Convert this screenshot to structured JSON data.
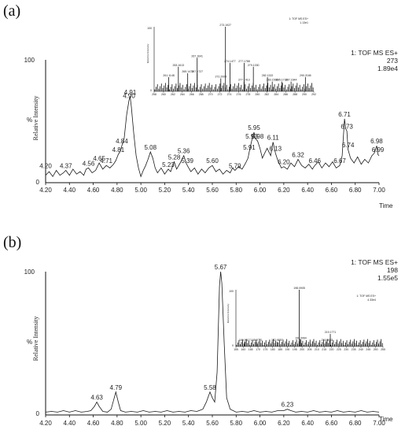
{
  "chart_data": [
    {
      "type": "line",
      "panel_label": "(a)",
      "xlabel": "Time",
      "ylabel": "Relative Intensity",
      "percent_label": "%",
      "xlim": [
        4.2,
        7.0
      ],
      "ylim": [
        0,
        100
      ],
      "x_ticks": [
        "4.20",
        "4.40",
        "4.60",
        "4.80",
        "5.00",
        "5.20",
        "5.40",
        "5.60",
        "5.80",
        "6.00",
        "6.20",
        "6.40",
        "6.60",
        "6.80",
        "7.00"
      ],
      "y_ticks": [
        "0",
        "100"
      ],
      "info": [
        "1: TOF MS ES+",
        "273",
        "1.89e4"
      ],
      "peaks": [
        {
          "x": 4.2,
          "y": 10,
          "label": "4.20"
        },
        {
          "x": 4.37,
          "y": 10,
          "label": "4.37"
        },
        {
          "x": 4.56,
          "y": 12,
          "label": "4.56"
        },
        {
          "x": 4.65,
          "y": 16,
          "label": "4.65"
        },
        {
          "x": 4.71,
          "y": 14,
          "label": "4.71"
        },
        {
          "x": 4.81,
          "y": 23,
          "label": "4.81"
        },
        {
          "x": 4.84,
          "y": 30,
          "label": "4.84"
        },
        {
          "x": 4.9,
          "y": 67,
          "label": "4.90"
        },
        {
          "x": 4.91,
          "y": 70,
          "label": "4.91"
        },
        {
          "x": 5.08,
          "y": 25,
          "label": "5.08"
        },
        {
          "x": 5.23,
          "y": 11,
          "label": "5.23"
        },
        {
          "x": 5.28,
          "y": 17,
          "label": "5.28"
        },
        {
          "x": 5.36,
          "y": 22,
          "label": "5.36"
        },
        {
          "x": 5.39,
          "y": 14,
          "label": "5.39"
        },
        {
          "x": 5.6,
          "y": 14,
          "label": "5.60"
        },
        {
          "x": 5.79,
          "y": 10,
          "label": "5.79"
        },
        {
          "x": 5.91,
          "y": 25,
          "label": "5.91"
        },
        {
          "x": 5.93,
          "y": 34,
          "label": "5.93"
        },
        {
          "x": 5.95,
          "y": 41,
          "label": "5.95"
        },
        {
          "x": 5.98,
          "y": 34,
          "label": "5.98"
        },
        {
          "x": 6.11,
          "y": 33,
          "label": "6.11"
        },
        {
          "x": 6.13,
          "y": 24,
          "label": "6.13"
        },
        {
          "x": 6.2,
          "y": 13,
          "label": "6.20"
        },
        {
          "x": 6.32,
          "y": 19,
          "label": "6.32"
        },
        {
          "x": 6.46,
          "y": 14,
          "label": "6.46"
        },
        {
          "x": 6.67,
          "y": 14,
          "label": "6.67"
        },
        {
          "x": 6.71,
          "y": 52,
          "label": "6.71"
        },
        {
          "x": 6.73,
          "y": 42,
          "label": "6.73"
        },
        {
          "x": 6.74,
          "y": 27,
          "label": "6.74"
        },
        {
          "x": 6.98,
          "y": 30,
          "label": "6.98"
        },
        {
          "x": 6.99,
          "y": 23,
          "label": "6.99"
        }
      ],
      "baseline": [
        [
          4.2,
          6
        ],
        [
          4.23,
          9
        ],
        [
          4.26,
          5
        ],
        [
          4.29,
          10
        ],
        [
          4.32,
          6
        ],
        [
          4.35,
          8
        ],
        [
          4.37,
          10
        ],
        [
          4.4,
          6
        ],
        [
          4.43,
          11
        ],
        [
          4.46,
          7
        ],
        [
          4.49,
          9
        ],
        [
          4.52,
          6
        ],
        [
          4.54,
          11
        ],
        [
          4.56,
          12
        ],
        [
          4.59,
          8
        ],
        [
          4.62,
          10
        ],
        [
          4.65,
          16
        ],
        [
          4.68,
          11
        ],
        [
          4.71,
          14
        ],
        [
          4.74,
          12
        ],
        [
          4.77,
          15
        ],
        [
          4.79,
          18
        ],
        [
          4.81,
          23
        ],
        [
          4.83,
          26
        ],
        [
          4.84,
          30
        ],
        [
          4.86,
          36
        ],
        [
          4.88,
          55
        ],
        [
          4.9,
          67
        ],
        [
          4.91,
          70
        ],
        [
          4.92,
          62
        ],
        [
          4.94,
          40
        ],
        [
          4.96,
          22
        ],
        [
          4.98,
          12
        ],
        [
          5.0,
          5
        ],
        [
          5.02,
          10
        ],
        [
          5.04,
          14
        ],
        [
          5.06,
          19
        ],
        [
          5.08,
          25
        ],
        [
          5.1,
          20
        ],
        [
          5.12,
          12
        ],
        [
          5.14,
          8
        ],
        [
          5.17,
          12
        ],
        [
          5.2,
          7
        ],
        [
          5.23,
          11
        ],
        [
          5.25,
          9
        ],
        [
          5.28,
          17
        ],
        [
          5.3,
          11
        ],
        [
          5.33,
          16
        ],
        [
          5.36,
          22
        ],
        [
          5.38,
          16
        ],
        [
          5.39,
          14
        ],
        [
          5.42,
          9
        ],
        [
          5.45,
          12
        ],
        [
          5.48,
          7
        ],
        [
          5.51,
          11
        ],
        [
          5.54,
          8
        ],
        [
          5.57,
          12
        ],
        [
          5.6,
          14
        ],
        [
          5.63,
          9
        ],
        [
          5.66,
          11
        ],
        [
          5.69,
          7
        ],
        [
          5.72,
          10
        ],
        [
          5.75,
          8
        ],
        [
          5.77,
          12
        ],
        [
          5.79,
          10
        ],
        [
          5.82,
          13
        ],
        [
          5.85,
          11
        ],
        [
          5.88,
          16
        ],
        [
          5.9,
          20
        ],
        [
          5.91,
          25
        ],
        [
          5.93,
          34
        ],
        [
          5.95,
          41
        ],
        [
          5.96,
          36
        ],
        [
          5.98,
          34
        ],
        [
          6.0,
          28
        ],
        [
          6.02,
          20
        ],
        [
          6.04,
          24
        ],
        [
          6.06,
          28
        ],
        [
          6.09,
          22
        ],
        [
          6.11,
          33
        ],
        [
          6.13,
          24
        ],
        [
          6.15,
          18
        ],
        [
          6.18,
          12
        ],
        [
          6.2,
          13
        ],
        [
          6.23,
          11
        ],
        [
          6.26,
          16
        ],
        [
          6.29,
          13
        ],
        [
          6.32,
          19
        ],
        [
          6.35,
          14
        ],
        [
          6.38,
          12
        ],
        [
          6.41,
          15
        ],
        [
          6.44,
          11
        ],
        [
          6.46,
          14
        ],
        [
          6.49,
          17
        ],
        [
          6.52,
          12
        ],
        [
          6.55,
          16
        ],
        [
          6.58,
          13
        ],
        [
          6.61,
          17
        ],
        [
          6.64,
          12
        ],
        [
          6.67,
          14
        ],
        [
          6.69,
          22
        ],
        [
          6.71,
          52
        ],
        [
          6.72,
          44
        ],
        [
          6.73,
          42
        ],
        [
          6.74,
          27
        ],
        [
          6.76,
          20
        ],
        [
          6.79,
          16
        ],
        [
          6.82,
          21
        ],
        [
          6.85,
          15
        ],
        [
          6.88,
          19
        ],
        [
          6.91,
          16
        ],
        [
          6.94,
          22
        ],
        [
          6.96,
          24
        ],
        [
          6.98,
          30
        ],
        [
          6.99,
          23
        ],
        [
          7.0,
          22
        ]
      ],
      "inset": {
        "type": "bar",
        "xlim": [
          258,
          292
        ],
        "ylim": [
          0,
          100
        ],
        "ylabel": "Relative Intensity",
        "y_ticks": [
          "0",
          "100"
        ],
        "x_ticks": [
          "258",
          "260",
          "262",
          "264",
          "266",
          "268",
          "270",
          "272",
          "274",
          "276",
          "278",
          "280",
          "282",
          "284",
          "286",
          "288",
          "290",
          "292"
        ],
        "info": [
          "1: TOF MS ES+",
          "1.13e1"
        ],
        "peaks": [
          {
            "x": 261.1148,
            "y": 22,
            "label": "261.1148"
          },
          {
            "x": 263.1613,
            "y": 38,
            "label": "263.1613"
          },
          {
            "x": 265.1472,
            "y": 28,
            "label": "265.1472"
          },
          {
            "x": 267.1641,
            "y": 52,
            "label": "267.1641"
          },
          {
            "x": 267.1727,
            "y": 28,
            "label": "267.1727"
          },
          {
            "x": 272.2009,
            "y": 20,
            "label": "272.2009"
          },
          {
            "x": 273.1927,
            "y": 100,
            "label": "273.1927"
          },
          {
            "x": 274.1477,
            "y": 44,
            "label": "274.1477"
          },
          {
            "x": 277.1413,
            "y": 15,
            "label": "277.1413"
          },
          {
            "x": 277.1788,
            "y": 44,
            "label": "277.1788"
          },
          {
            "x": 279.133,
            "y": 38,
            "label": "279.1330"
          },
          {
            "x": 282.1322,
            "y": 22,
            "label": "282.1322"
          },
          {
            "x": 283.1566,
            "y": 15,
            "label": "283.1566"
          },
          {
            "x": 285.1732,
            "y": 15,
            "label": "285.1732"
          },
          {
            "x": 287.1644,
            "y": 15,
            "label": "287.1644"
          },
          {
            "x": 290.2165,
            "y": 22,
            "label": "290.2165"
          }
        ]
      }
    },
    {
      "type": "line",
      "panel_label": "(b)",
      "xlabel": "Time",
      "ylabel": "Relative Intensity",
      "percent_label": "%",
      "xlim": [
        4.2,
        7.0
      ],
      "ylim": [
        0,
        100
      ],
      "x_ticks": [
        "4.20",
        "4.40",
        "4.60",
        "4.80",
        "5.00",
        "5.20",
        "5.40",
        "5.60",
        "5.80",
        "6.00",
        "6.20",
        "6.40",
        "6.60",
        "6.80",
        "7.00"
      ],
      "y_ticks": [
        "0",
        "100"
      ],
      "info": [
        "1: TOF MS ES+",
        "198",
        "1.55e5"
      ],
      "peaks": [
        {
          "x": 4.63,
          "y": 9,
          "label": "4.63"
        },
        {
          "x": 4.79,
          "y": 16,
          "label": "4.79"
        },
        {
          "x": 5.58,
          "y": 16,
          "label": "5.58"
        },
        {
          "x": 5.67,
          "y": 100,
          "label": "5.67"
        },
        {
          "x": 6.23,
          "y": 4,
          "label": "6.23"
        }
      ],
      "baseline": [
        [
          4.2,
          2
        ],
        [
          4.25,
          2.5
        ],
        [
          4.3,
          2
        ],
        [
          4.35,
          3
        ],
        [
          4.4,
          2
        ],
        [
          4.45,
          3
        ],
        [
          4.5,
          2
        ],
        [
          4.55,
          2.5
        ],
        [
          4.58,
          3
        ],
        [
          4.61,
          6
        ],
        [
          4.63,
          9
        ],
        [
          4.65,
          6
        ],
        [
          4.68,
          2.5
        ],
        [
          4.72,
          2
        ],
        [
          4.75,
          4
        ],
        [
          4.77,
          10
        ],
        [
          4.79,
          16
        ],
        [
          4.81,
          9
        ],
        [
          4.83,
          3
        ],
        [
          4.87,
          2
        ],
        [
          4.92,
          2.5
        ],
        [
          4.97,
          2
        ],
        [
          5.02,
          3
        ],
        [
          5.07,
          2
        ],
        [
          5.12,
          2.5
        ],
        [
          5.17,
          2
        ],
        [
          5.22,
          3
        ],
        [
          5.27,
          2
        ],
        [
          5.32,
          2.5
        ],
        [
          5.37,
          2
        ],
        [
          5.42,
          3
        ],
        [
          5.47,
          2.5
        ],
        [
          5.52,
          4
        ],
        [
          5.55,
          9
        ],
        [
          5.58,
          16
        ],
        [
          5.6,
          12
        ],
        [
          5.62,
          9
        ],
        [
          5.64,
          30
        ],
        [
          5.66,
          90
        ],
        [
          5.67,
          100
        ],
        [
          5.68,
          92
        ],
        [
          5.7,
          50
        ],
        [
          5.72,
          12
        ],
        [
          5.75,
          4
        ],
        [
          5.8,
          2
        ],
        [
          5.85,
          2.5
        ],
        [
          5.9,
          2
        ],
        [
          5.95,
          3
        ],
        [
          6.0,
          2
        ],
        [
          6.05,
          2.5
        ],
        [
          6.1,
          2
        ],
        [
          6.15,
          3
        ],
        [
          6.2,
          3
        ],
        [
          6.23,
          4
        ],
        [
          6.26,
          3
        ],
        [
          6.3,
          2
        ],
        [
          6.35,
          2.5
        ],
        [
          6.4,
          2
        ],
        [
          6.45,
          3
        ],
        [
          6.5,
          2
        ],
        [
          6.55,
          2.5
        ],
        [
          6.6,
          2
        ],
        [
          6.65,
          3
        ],
        [
          6.7,
          2
        ],
        [
          6.75,
          2.5
        ],
        [
          6.8,
          2
        ],
        [
          6.85,
          3
        ],
        [
          6.9,
          2
        ],
        [
          6.95,
          2.5
        ],
        [
          7.0,
          2
        ]
      ],
      "inset": {
        "type": "bar",
        "xlim": [
          155,
          255
        ],
        "ylim": [
          0,
          100
        ],
        "ylabel": "Relative Intensity",
        "y_ticks": [
          "0",
          "100"
        ],
        "x_ticks": [
          "155",
          "160",
          "165",
          "170",
          "175",
          "180",
          "185",
          "190",
          "195",
          "200",
          "205",
          "210",
          "215",
          "220",
          "225",
          "230",
          "235",
          "240",
          "245",
          "250",
          "255"
        ],
        "info": [
          "1: TOF MS ES+",
          "4.33e4"
        ],
        "peaks": [
          {
            "x": 160.9617,
            "y": 8,
            "label": "160.9617"
          },
          {
            "x": 168.9771,
            "y": 8,
            "label": "168.9771"
          },
          {
            "x": 182.9857,
            "y": 8,
            "label": "182.9857"
          },
          {
            "x": 198.0905,
            "y": 100,
            "label": "198.0905"
          },
          {
            "x": 199.0964,
            "y": 12,
            "label": "199.0964"
          },
          {
            "x": 216.9883,
            "y": 8,
            "label": "216.9883"
          },
          {
            "x": 219.1771,
            "y": 22,
            "label": "219.1771"
          }
        ]
      }
    }
  ]
}
